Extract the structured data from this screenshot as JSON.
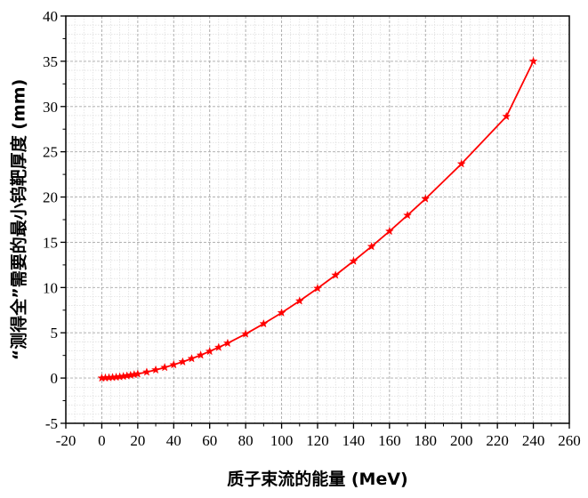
{
  "chart_data": {
    "type": "line",
    "xlabel": "质子束流的能量 (MeV)",
    "ylabel": "“测得全”需要的最小钨靶厚度 (mm)",
    "xlim": [
      -20,
      260
    ],
    "ylim": [
      -5,
      40
    ],
    "x_ticks": [
      -20,
      0,
      20,
      40,
      60,
      80,
      100,
      120,
      140,
      160,
      180,
      200,
      220,
      240,
      260
    ],
    "y_ticks": [
      -5,
      0,
      5,
      10,
      15,
      20,
      25,
      30,
      35,
      40
    ],
    "x_minor_step": 5,
    "y_minor_step": 1,
    "grid": true,
    "series": [
      {
        "color": "#ff0000",
        "marker": "star",
        "x": [
          0,
          2,
          4,
          6,
          8,
          10,
          12,
          14,
          16,
          18,
          20,
          25,
          30,
          35,
          40,
          45,
          50,
          55,
          60,
          65,
          70,
          80,
          90,
          100,
          110,
          120,
          130,
          140,
          150,
          160,
          170,
          180,
          200,
          225,
          240
        ],
        "y": [
          0.0,
          0.02,
          0.04,
          0.07,
          0.1,
          0.14,
          0.19,
          0.25,
          0.31,
          0.38,
          0.45,
          0.66,
          0.9,
          1.17,
          1.47,
          1.79,
          2.15,
          2.53,
          2.95,
          3.39,
          3.85,
          4.87,
          6.0,
          7.21,
          8.52,
          9.91,
          11.37,
          12.92,
          14.53,
          16.22,
          17.98,
          19.8,
          23.66,
          28.9,
          35.0
        ]
      }
    ]
  }
}
